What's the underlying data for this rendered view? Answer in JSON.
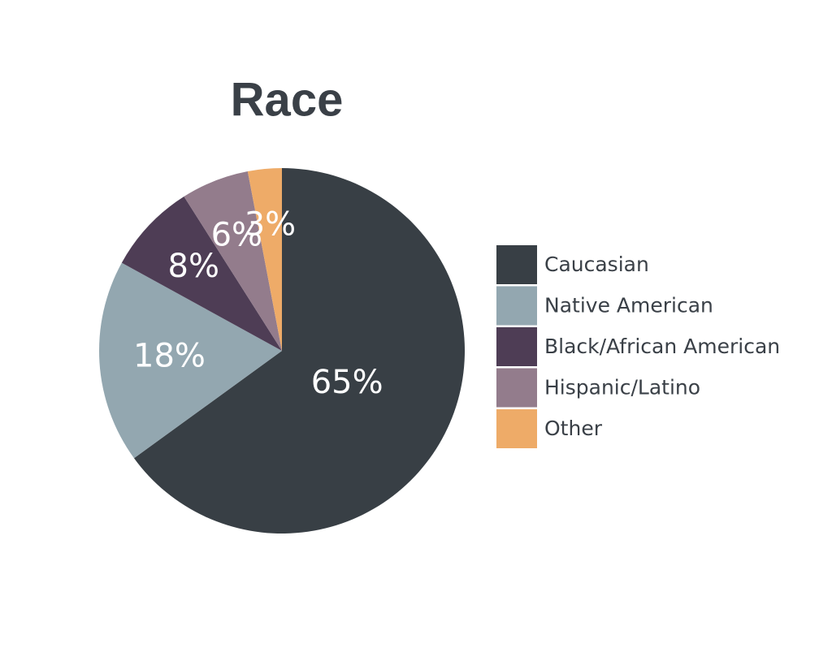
{
  "chart_data": {
    "type": "pie",
    "title": "Race",
    "categories": [
      "Caucasian",
      "Native American",
      "Black/African American",
      "Hispanic/Latino",
      "Other"
    ],
    "values": [
      65,
      18,
      8,
      6,
      3
    ],
    "value_labels": [
      "65%",
      "18%",
      "8%",
      "6%",
      "3%"
    ],
    "colors": [
      "#383f45",
      "#93a7b0",
      "#4e3d55",
      "#937c8c",
      "#eeab68"
    ],
    "legend": "right"
  }
}
